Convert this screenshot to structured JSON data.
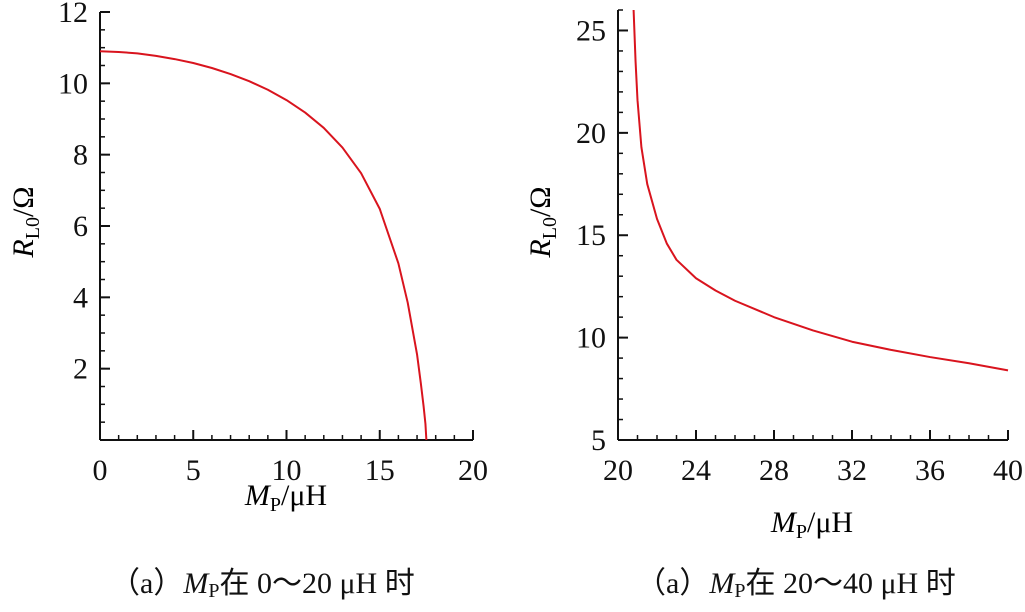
{
  "colors": {
    "curve": "#d9141e",
    "axis": "#111111"
  },
  "chart_data": [
    {
      "type": "line",
      "xlabel": "M_P/μH",
      "ylabel": "R_L0/Ω",
      "xlim": [
        0,
        20
      ],
      "ylim": [
        0,
        12
      ],
      "xticks": [
        "0",
        "5",
        "10",
        "15",
        "20"
      ],
      "yticks": [
        "2",
        "4",
        "6",
        "8",
        "10",
        "12"
      ],
      "series": [
        {
          "x": [
            0,
            1,
            2,
            3,
            4,
            5,
            6,
            7,
            8,
            9,
            10,
            11,
            12,
            13,
            14,
            15,
            16,
            16.5,
            17,
            17.2,
            17.35,
            17.45,
            17.5
          ],
          "y": [
            10.9,
            10.88,
            10.84,
            10.77,
            10.68,
            10.57,
            10.43,
            10.26,
            10.06,
            9.82,
            9.53,
            9.18,
            8.75,
            8.2,
            7.48,
            6.48,
            4.95,
            3.85,
            2.4,
            1.6,
            0.95,
            0.45,
            0.0
          ]
        }
      ],
      "caption": {
        "prefix": "（a）",
        "var": "M",
        "sub": "P",
        "suffix": "在 0～20 μH 时"
      }
    },
    {
      "type": "line",
      "xlabel": "M_P/μH",
      "ylabel": "R_L0/Ω",
      "xlim": [
        20,
        40
      ],
      "ylim": [
        5,
        26
      ],
      "xticks": [
        "20",
        "24",
        "28",
        "32",
        "36",
        "40"
      ],
      "yticks": [
        "5",
        "10",
        "15",
        "20",
        "25"
      ],
      "series": [
        {
          "x": [
            20.8,
            20.9,
            21.0,
            21.2,
            21.5,
            22,
            22.5,
            23,
            24,
            25,
            26,
            28,
            30,
            32,
            34,
            36,
            38,
            40
          ],
          "y": [
            26.0,
            23.5,
            21.6,
            19.3,
            17.5,
            15.8,
            14.6,
            13.8,
            12.9,
            12.3,
            11.8,
            11.0,
            10.35,
            9.8,
            9.4,
            9.05,
            8.75,
            8.4
          ]
        }
      ],
      "caption": {
        "prefix": "（a）",
        "var": "M",
        "sub": "P",
        "suffix": "在 20～40 μH 时"
      }
    }
  ]
}
